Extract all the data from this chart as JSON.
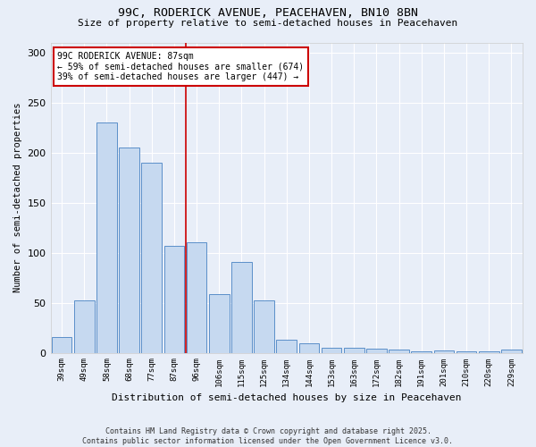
{
  "title1": "99C, RODERICK AVENUE, PEACEHAVEN, BN10 8BN",
  "title2": "Size of property relative to semi-detached houses in Peacehaven",
  "xlabel": "Distribution of semi-detached houses by size in Peacehaven",
  "ylabel": "Number of semi-detached properties",
  "categories": [
    "39sqm",
    "49sqm",
    "58sqm",
    "68sqm",
    "77sqm",
    "87sqm",
    "96sqm",
    "106sqm",
    "115sqm",
    "125sqm",
    "134sqm",
    "144sqm",
    "153sqm",
    "163sqm",
    "172sqm",
    "182sqm",
    "191sqm",
    "201sqm",
    "210sqm",
    "220sqm",
    "229sqm"
  ],
  "values": [
    16,
    52,
    230,
    205,
    190,
    107,
    110,
    59,
    91,
    52,
    13,
    9,
    5,
    5,
    4,
    3,
    1,
    2,
    1,
    1,
    3
  ],
  "bar_color": "#c6d9f0",
  "bar_edge_color": "#5b8fc9",
  "vline_x": 5.5,
  "vline_color": "#cc0000",
  "annotation_title": "99C RODERICK AVENUE: 87sqm",
  "annotation_line1": "← 59% of semi-detached houses are smaller (674)",
  "annotation_line2": "39% of semi-detached houses are larger (447) →",
  "annotation_box_color": "#cc0000",
  "background_color": "#e8eef8",
  "grid_color": "#ffffff",
  "footer1": "Contains HM Land Registry data © Crown copyright and database right 2025.",
  "footer2": "Contains public sector information licensed under the Open Government Licence v3.0.",
  "ylim": [
    0,
    310
  ],
  "yticks": [
    0,
    50,
    100,
    150,
    200,
    250,
    300
  ]
}
